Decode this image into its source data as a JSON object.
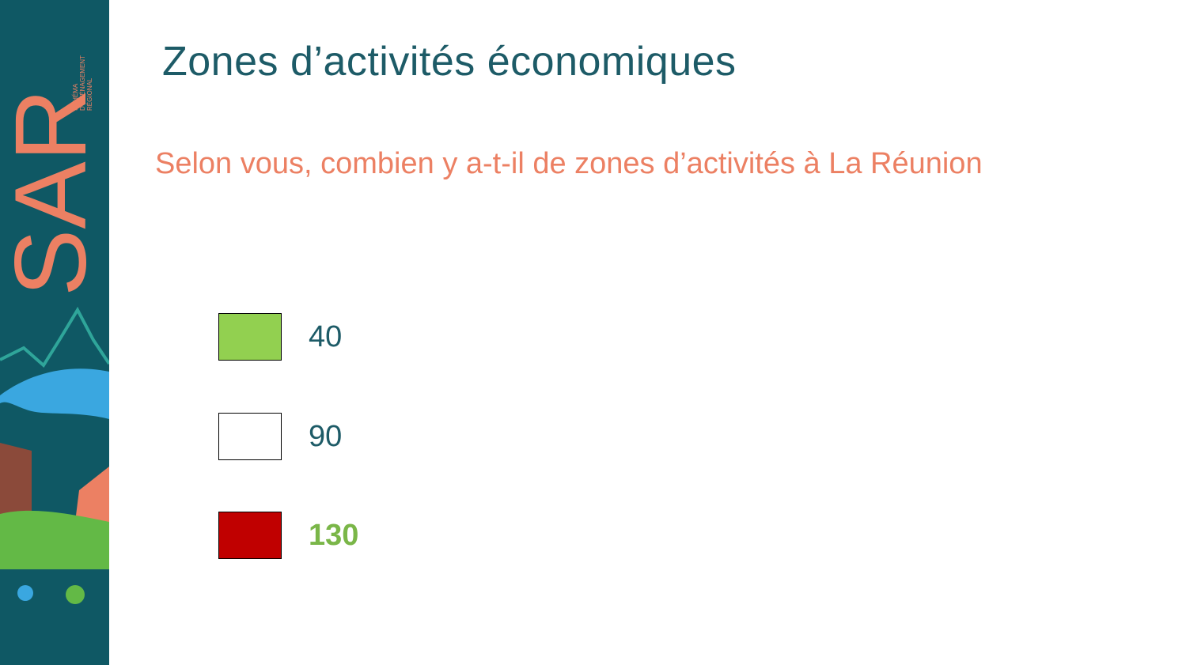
{
  "sidebar": {
    "brand": "SAR",
    "tagline": [
      "SCHÉMA",
      "D'AMÉNAGEMENT",
      "RÉGIONAL"
    ]
  },
  "header": {
    "title": "Zones d’activités économiques"
  },
  "question": "Selon vous, combien y a-t-il de zones d’activités à La Réunion",
  "options": [
    {
      "label": "40",
      "box_color": "#92d050",
      "correct": false
    },
    {
      "label": "90",
      "box_color": "#ffffff",
      "correct": false
    },
    {
      "label": "130",
      "box_color": "#c00000",
      "correct": true
    }
  ]
}
